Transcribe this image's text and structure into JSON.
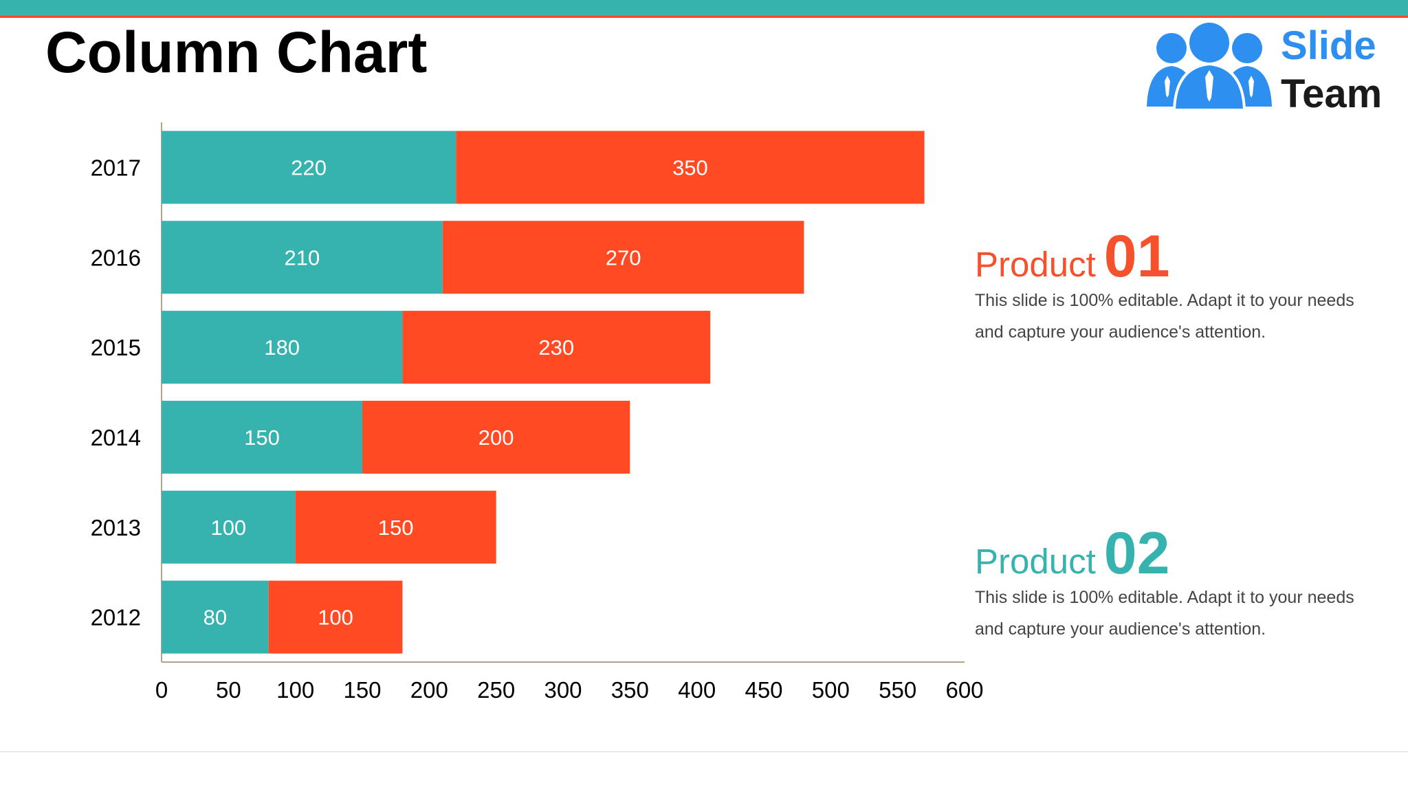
{
  "slide": {
    "title": "Column Chart"
  },
  "logo": {
    "line1": "Slide",
    "line2": "Team",
    "icon": "team-people-icon"
  },
  "products": [
    {
      "label": "Product",
      "number": "01",
      "description": "This slide is 100% editable. Adapt it to your needs and capture your audience's attention.",
      "color": "#f4512c"
    },
    {
      "label": "Product",
      "number": "02",
      "description": "This slide is 100% editable. Adapt it to your needs and capture your audience's attention.",
      "color": "#36b3ae"
    }
  ],
  "colors": {
    "teal": "#36b3ae",
    "orange": "#ff4a24",
    "axis": "#b5a38a"
  },
  "chart_data": {
    "type": "bar",
    "orientation": "horizontal",
    "stacked": true,
    "title": "Column Chart",
    "categories": [
      "2017",
      "2016",
      "2015",
      "2014",
      "2013",
      "2012"
    ],
    "series": [
      {
        "name": "Product 02",
        "color": "#36b3ae",
        "values": [
          220,
          210,
          180,
          150,
          100,
          80
        ]
      },
      {
        "name": "Product 01",
        "color": "#ff4a24",
        "values": [
          350,
          270,
          230,
          200,
          150,
          100
        ]
      }
    ],
    "xlim": [
      0,
      600
    ],
    "xticks": [
      0,
      50,
      100,
      150,
      200,
      250,
      300,
      350,
      400,
      450,
      500,
      550,
      600
    ],
    "xlabel": "",
    "ylabel": "",
    "grid": false,
    "data_labels": true
  }
}
